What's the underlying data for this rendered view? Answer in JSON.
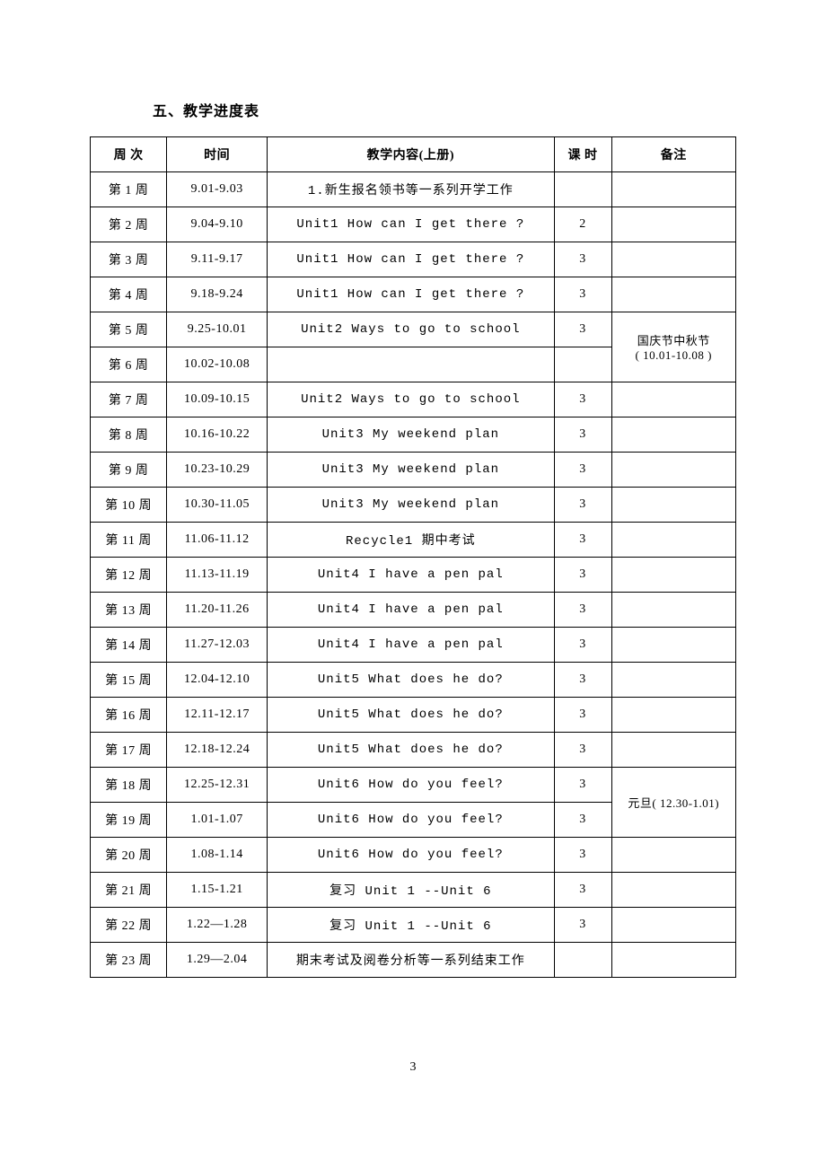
{
  "section_title": "五、教学进度表",
  "page_number": "3",
  "headers": {
    "week": "周 次",
    "time": "时间",
    "content": "教学内容(上册)",
    "hours": "课 时",
    "notes": "备注"
  },
  "rows": [
    {
      "week": "第 1 周",
      "time": "9.01-9.03",
      "content": "1.新生报名领书等一系列开学工作",
      "hours": "",
      "notes": ""
    },
    {
      "week": "第 2 周",
      "time": "9.04-9.10",
      "content": "Unit1    How can I get there ?",
      "hours": "2",
      "notes": ""
    },
    {
      "week": "第 3 周",
      "time": "9.11-9.17",
      "content": "Unit1    How can I get there ?",
      "hours": "3",
      "notes": ""
    },
    {
      "week": "第 4 周",
      "time": "9.18-9.24",
      "content": "Unit1    How can I get there ?",
      "hours": "3",
      "notes": ""
    },
    {
      "week": "第 5 周",
      "time": "9.25-10.01",
      "content": "Unit2    Ways to go to school",
      "hours": "3"
    },
    {
      "week": "第 6 周",
      "time": "10.02-10.08",
      "content": "",
      "hours": ""
    },
    {
      "week": "第 7 周",
      "time": "10.09-10.15",
      "content": "Unit2    Ways to go to school",
      "hours": "3",
      "notes": ""
    },
    {
      "week": "第 8 周",
      "time": "10.16-10.22",
      "content": "Unit3    My weekend plan",
      "hours": "3",
      "notes": ""
    },
    {
      "week": "第 9 周",
      "time": "10.23-10.29",
      "content": "Unit3    My weekend plan",
      "hours": "3",
      "notes": ""
    },
    {
      "week": "第 10 周",
      "time": "10.30-11.05",
      "content": "Unit3    My weekend plan",
      "hours": "3",
      "notes": ""
    },
    {
      "week": "第 11 周",
      "time": "11.06-11.12",
      "content": "Recycle1     期中考试",
      "hours": "3",
      "notes": ""
    },
    {
      "week": "第 12 周",
      "time": "11.13-11.19",
      "content": "Unit4   I have a pen pal",
      "hours": "3",
      "notes": ""
    },
    {
      "week": "第 13 周",
      "time": "11.20-11.26",
      "content": "Unit4   I have a pen pal",
      "hours": "3",
      "notes": ""
    },
    {
      "week": "第 14 周",
      "time": "11.27-12.03",
      "content": "Unit4   I have a pen pal",
      "hours": "3",
      "notes": ""
    },
    {
      "week": "第 15 周",
      "time": "12.04-12.10",
      "content": "Unit5   What does he do?",
      "hours": "3",
      "notes": ""
    },
    {
      "week": "第 16 周",
      "time": "12.11-12.17",
      "content": "Unit5   What does he do?",
      "hours": "3",
      "notes": ""
    },
    {
      "week": "第 17 周",
      "time": "12.18-12.24",
      "content": "Unit5   What does he do?",
      "hours": "3",
      "notes": ""
    },
    {
      "week": "第 18 周",
      "time": "12.25-12.31",
      "content": "Unit6   How do you feel?",
      "hours": "3"
    },
    {
      "week": "第 19 周",
      "time": "1.01-1.07",
      "content": "Unit6   How do you feel?",
      "hours": "3"
    },
    {
      "week": "第 20 周",
      "time": "1.08-1.14",
      "content": "Unit6   How do you feel?",
      "hours": "3",
      "notes": ""
    },
    {
      "week": "第 21 周",
      "time": "1.15-1.21",
      "content": "复习 Unit 1 --Unit 6",
      "hours": "3",
      "notes": ""
    },
    {
      "week": "第 22 周",
      "time": "1.22—1.28",
      "content": "复习 Unit 1 --Unit 6",
      "hours": "3",
      "notes": ""
    },
    {
      "week": "第 23 周",
      "time": "1.29—2.04",
      "content": "期末考试及阅卷分析等一系列结束工作",
      "hours": "",
      "notes": ""
    }
  ],
  "merged_notes": {
    "holiday1_line1": "国庆节中秋节",
    "holiday1_line2": "( 10.01-10.08 )",
    "holiday2": "元旦( 12.30-1.01)"
  }
}
